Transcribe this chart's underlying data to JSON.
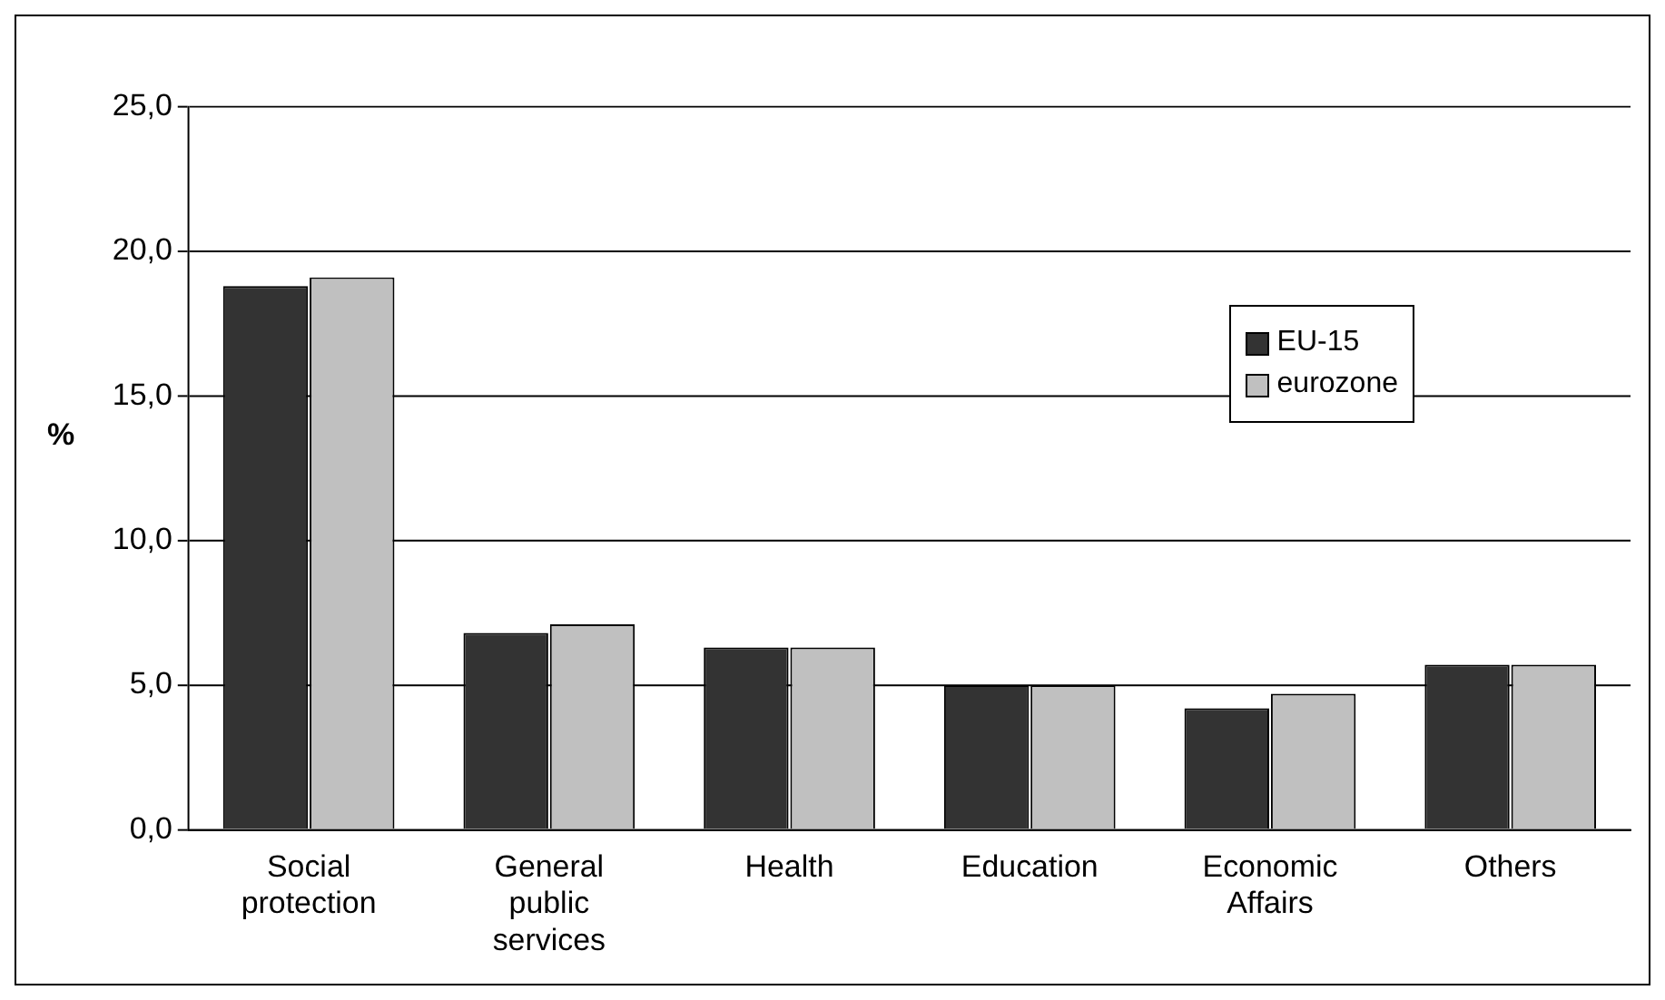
{
  "chart_data": {
    "type": "bar",
    "ylabel": "%",
    "categories": [
      "Social protection",
      "General public services",
      "Health",
      "Education",
      "Economic Affairs",
      "Others"
    ],
    "series": [
      {
        "name": "EU-15",
        "color": "#333333",
        "values": [
          18.8,
          6.8,
          6.3,
          5.0,
          4.2,
          5.7
        ]
      },
      {
        "name": "eurozone",
        "color": "#c0c0c0",
        "values": [
          19.1,
          7.1,
          6.3,
          5.0,
          4.7,
          5.7
        ]
      }
    ],
    "ylim": [
      0,
      25
    ],
    "yticks": [
      {
        "value": 0,
        "label": "0,0"
      },
      {
        "value": 5,
        "label": "5,0"
      },
      {
        "value": 10,
        "label": "10,0"
      },
      {
        "value": 15,
        "label": "15,0"
      },
      {
        "value": 20,
        "label": "20,0"
      },
      {
        "value": 25,
        "label": "25,0"
      }
    ],
    "grid": "y",
    "legend": "right"
  }
}
